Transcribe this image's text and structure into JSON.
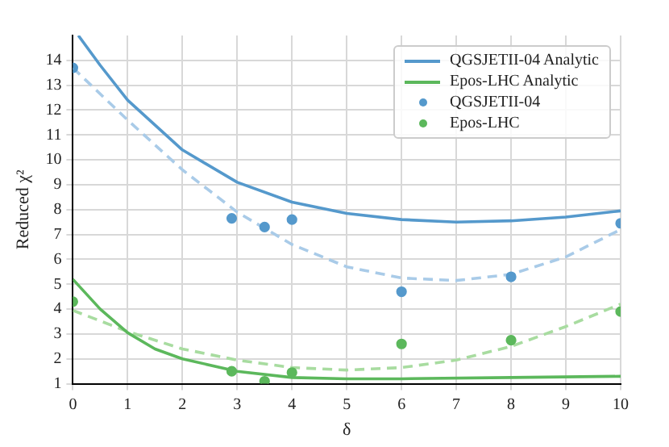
{
  "chart_data": {
    "type": "line",
    "xlabel": "δ",
    "ylabel": "Reduced χ²",
    "xlim": [
      0,
      10
    ],
    "ylim": [
      1,
      15
    ],
    "xticks": [
      0,
      1,
      2,
      3,
      4,
      5,
      6,
      7,
      8,
      9,
      10
    ],
    "yticks": [
      1,
      2,
      3,
      4,
      5,
      6,
      7,
      8,
      9,
      10,
      11,
      12,
      13,
      14
    ],
    "grid": true,
    "legend": "top right",
    "series": [
      {
        "name": "QGSJETII-04 Analytic",
        "color": "#5599cc",
        "line_style": "solid",
        "marker": "none",
        "x": [
          0.1,
          0.5,
          1,
          2,
          3,
          4,
          5,
          6,
          7,
          8,
          9,
          10
        ],
        "values": [
          15,
          13.8,
          12.4,
          10.4,
          9.1,
          8.3,
          7.85,
          7.6,
          7.5,
          7.55,
          7.7,
          7.95
        ]
      },
      {
        "name": "Epos-LHC Analytic",
        "color": "#5cb85c",
        "line_style": "solid",
        "marker": "none",
        "x": [
          0,
          0.5,
          1,
          1.5,
          2,
          3,
          4,
          5,
          6,
          8,
          10
        ],
        "values": [
          5.2,
          4,
          3.05,
          2.4,
          2,
          1.5,
          1.25,
          1.2,
          1.2,
          1.25,
          1.3
        ]
      },
      {
        "name": "QGSJETII-04",
        "type": "scatter",
        "color": "#5599cc",
        "marker": "circle",
        "x": [
          0,
          2.9,
          3.5,
          4,
          6,
          8,
          10
        ],
        "values": [
          13.7,
          7.65,
          7.3,
          7.6,
          4.7,
          5.3,
          7.45
        ]
      },
      {
        "name": "Epos-LHC",
        "type": "scatter",
        "color": "#5cb85c",
        "marker": "circle",
        "x": [
          0,
          2.9,
          3.5,
          4,
          6,
          8,
          10
        ],
        "values": [
          4.3,
          1.5,
          1.1,
          1.45,
          2.6,
          2.75,
          3.9
        ]
      },
      {
        "color": "#a9cbe8",
        "line_style": "dashed",
        "marker": "none",
        "x": [
          0,
          1,
          2,
          3,
          4,
          5,
          6,
          7,
          8,
          9,
          10
        ],
        "values": [
          13.7,
          11.6,
          9.6,
          7.9,
          6.6,
          5.7,
          5.25,
          5.15,
          5.4,
          6.1,
          7.2
        ]
      },
      {
        "color": "#a8dca0",
        "line_style": "dashed",
        "marker": "none",
        "x": [
          0,
          1,
          2,
          3,
          4,
          5,
          6,
          7,
          8,
          9,
          10
        ],
        "values": [
          3.95,
          3.1,
          2.4,
          1.95,
          1.65,
          1.55,
          1.65,
          1.95,
          2.5,
          3.3,
          4.2
        ]
      }
    ]
  }
}
